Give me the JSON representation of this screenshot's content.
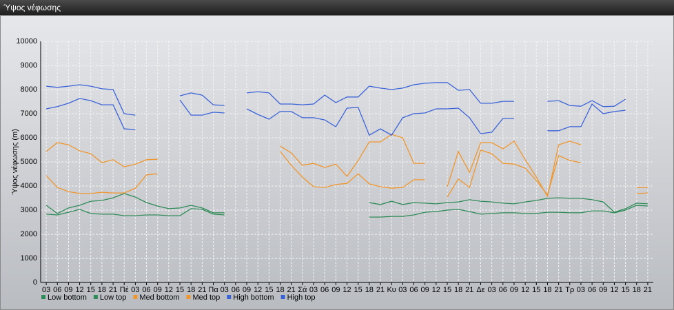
{
  "window_title": "Ύψος νέφωσης",
  "chart_data": {
    "type": "line",
    "ylabel": "Ύψος νέφωσης (m)",
    "categories": [
      "03",
      "06",
      "09",
      "12",
      "15",
      "18",
      "21",
      "Πέ",
      "03",
      "06",
      "09",
      "12",
      "15",
      "18",
      "21",
      "Πα",
      "03",
      "06",
      "09",
      "12",
      "15",
      "18",
      "21",
      "Σά",
      "03",
      "06",
      "09",
      "12",
      "15",
      "18",
      "21",
      "Κυ",
      "03",
      "06",
      "09",
      "12",
      "15",
      "18",
      "21",
      "Δε",
      "03",
      "06",
      "09",
      "12",
      "15",
      "18",
      "21",
      "Τρ",
      "03",
      "06",
      "09",
      "12",
      "15",
      "18",
      "21"
    ],
    "ylim": [
      0,
      10000
    ],
    "yticks": [
      0,
      1000,
      2000,
      3000,
      4000,
      5000,
      6000,
      7000,
      8000,
      9000,
      10000
    ],
    "grid": true,
    "legend": "bottom-left",
    "series": [
      {
        "name": "Low bottom",
        "color": "#2e8b57",
        "values": [
          2830,
          2800,
          2910,
          3030,
          2860,
          2830,
          2830,
          2770,
          2770,
          2800,
          2800,
          2770,
          2770,
          3060,
          3030,
          2830,
          2800,
          null,
          null,
          null,
          null,
          null,
          null,
          null,
          null,
          null,
          null,
          null,
          null,
          2710,
          2710,
          2740,
          2740,
          2800,
          2910,
          2940,
          3000,
          3030,
          2940,
          2830,
          2860,
          2890,
          2890,
          2860,
          2860,
          2910,
          2910,
          2890,
          2890,
          2970,
          2970,
          2890,
          3000,
          3200,
          3170
        ]
      },
      {
        "name": "Low top",
        "color": "#2e8b57",
        "values": [
          3200,
          2860,
          3090,
          3200,
          3370,
          3400,
          3510,
          3690,
          3540,
          3310,
          3170,
          3060,
          3090,
          3200,
          3090,
          2890,
          2890,
          null,
          null,
          null,
          null,
          null,
          null,
          null,
          null,
          null,
          null,
          null,
          null,
          3310,
          3230,
          3370,
          3230,
          3310,
          3290,
          3260,
          3310,
          3340,
          3430,
          3370,
          3340,
          3290,
          3260,
          3340,
          3400,
          3490,
          3510,
          3490,
          3490,
          3430,
          3340,
          2910,
          3060,
          3290,
          3260
        ]
      },
      {
        "name": "Med bottom",
        "color": "#f0962e",
        "values": [
          4430,
          3940,
          3770,
          3690,
          3690,
          3740,
          3710,
          3710,
          3910,
          4460,
          4510,
          null,
          null,
          null,
          null,
          null,
          null,
          null,
          null,
          null,
          null,
          5430,
          4860,
          4370,
          3970,
          3940,
          4060,
          4110,
          4510,
          4090,
          3970,
          3910,
          3940,
          4260,
          4260,
          null,
          3540,
          4290,
          3940,
          5490,
          5340,
          4940,
          4910,
          4740,
          4230,
          3630,
          5260,
          5060,
          4970,
          null,
          null,
          null,
          null,
          3690,
          3710
        ]
      },
      {
        "name": "Med top",
        "color": "#f0962e",
        "values": [
          5430,
          5800,
          5710,
          5460,
          5340,
          4970,
          5090,
          4800,
          4910,
          5090,
          5110,
          null,
          null,
          null,
          null,
          null,
          null,
          null,
          null,
          null,
          null,
          5660,
          5370,
          4860,
          4940,
          4770,
          4910,
          4400,
          5060,
          5830,
          5830,
          6140,
          6000,
          4940,
          4940,
          null,
          3970,
          5430,
          4570,
          5800,
          5800,
          5540,
          5860,
          5090,
          4370,
          3570,
          5710,
          5860,
          5710,
          null,
          null,
          null,
          null,
          3940,
          3940
        ]
      },
      {
        "name": "High bottom",
        "color": "#3a62d8",
        "values": [
          7200,
          7290,
          7430,
          7630,
          7540,
          7370,
          7370,
          6370,
          6340,
          null,
          null,
          null,
          7570,
          6940,
          6940,
          7060,
          7030,
          null,
          7200,
          6970,
          6770,
          7090,
          7090,
          6830,
          6830,
          6740,
          6460,
          7230,
          7260,
          6110,
          6370,
          6110,
          6830,
          7000,
          7030,
          7200,
          7200,
          7230,
          6830,
          6170,
          6230,
          6800,
          6800,
          null,
          null,
          6290,
          6290,
          6460,
          6460,
          7400,
          7000,
          7090,
          7140,
          null,
          null
        ]
      },
      {
        "name": "High top",
        "color": "#3a62d8",
        "values": [
          8140,
          8090,
          8140,
          8200,
          8140,
          8030,
          8000,
          7000,
          6940,
          null,
          null,
          null,
          7740,
          7860,
          7770,
          7370,
          7340,
          null,
          7860,
          7910,
          7860,
          7400,
          7400,
          7370,
          7400,
          7770,
          7460,
          7690,
          7690,
          8140,
          8060,
          8000,
          8060,
          8200,
          8260,
          8290,
          8290,
          7970,
          8000,
          7430,
          7430,
          7510,
          7510,
          null,
          null,
          7510,
          7540,
          7340,
          7310,
          7540,
          7290,
          7310,
          7600,
          null,
          null
        ]
      }
    ]
  }
}
